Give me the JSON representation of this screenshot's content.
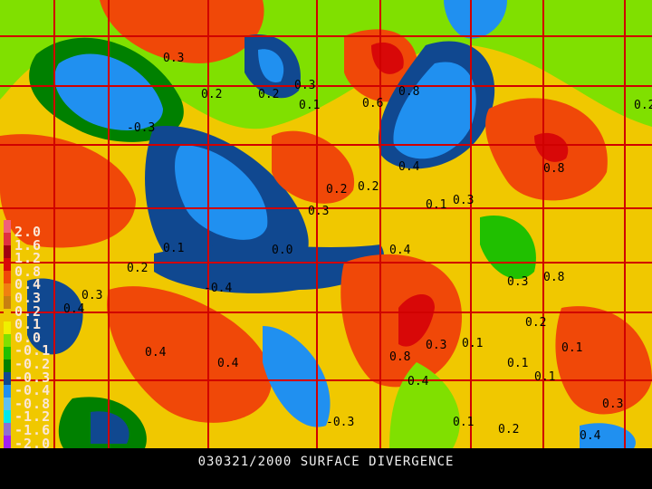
{
  "title": "030321/2000 SURFACE DIVERGENCE",
  "legend": {
    "labels": [
      "2.0",
      "1.6",
      "1.2",
      "0.8",
      "0.4",
      "0.3",
      "0.2",
      "0.1",
      "0.0",
      "-0.1",
      "-0.2",
      "-0.3",
      "-0.4",
      "-0.8",
      "-1.2",
      "-1.6",
      "-2.0"
    ],
    "colors": [
      "#f0607a",
      "#e03040",
      "#a00010",
      "#d80808",
      "#f04808",
      "#f08010",
      "#c88010",
      "#f0c800",
      "#f0f000",
      "#80e000",
      "#20c000",
      "#008000",
      "#104890",
      "#2090f0",
      "#60c0f0",
      "#00e8e8",
      "#9070d0",
      "#a020f0"
    ]
  },
  "contour_labels": [
    "0.3",
    "0.2",
    "0.2",
    "0.3",
    "0.1",
    "-0.3",
    "0.6",
    "0.8",
    "0.4",
    "0.2",
    "0.1",
    "0.8",
    "0.3",
    "0.2",
    "0.0",
    "0.4",
    "0.3",
    "0.8",
    "0.3",
    "-0.4",
    "0.2",
    "0.4",
    "0.1",
    "0.3",
    "0.2",
    "0.1",
    "0.4",
    "0.1",
    "0.1",
    "0.4",
    "0.4",
    "0.8",
    "0.3",
    "0.1",
    "0.2",
    "0.4",
    "0.3",
    "0.2",
    "0.1",
    "-0.3"
  ],
  "map_colors": {
    "background": "#f0f000",
    "state_lines": "#d00000",
    "contours": "#000000"
  }
}
